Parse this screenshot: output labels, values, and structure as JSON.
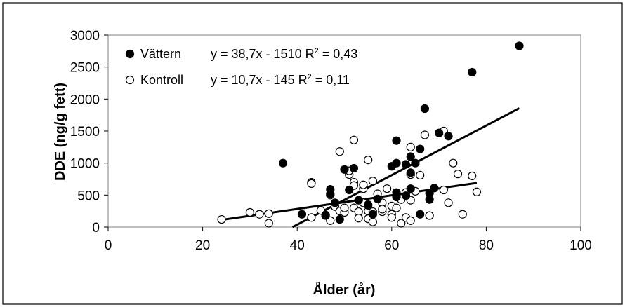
{
  "chart_data": {
    "type": "scatter",
    "xlabel": "Ålder (år)",
    "ylabel": "DDE (ng/g fett)",
    "xlim": [
      0,
      100
    ],
    "ylim": [
      0,
      3000
    ],
    "x_ticks": [
      "0",
      "20",
      "40",
      "60",
      "80",
      "100"
    ],
    "y_ticks": [
      "0",
      "500",
      "1000",
      "1500",
      "2000",
      "2500",
      "3000"
    ],
    "x_tick_values": [
      0,
      20,
      40,
      60,
      80,
      100
    ],
    "y_tick_values": [
      0,
      500,
      1000,
      1500,
      2000,
      2500,
      3000
    ],
    "grid": false,
    "legend_position": "top-left",
    "series": [
      {
        "name": "Vättern",
        "marker": "filled-circle",
        "equation": "y = 38,7x - 1510 R",
        "r2_value": " = 0,43",
        "trend": {
          "slope": 38.7,
          "intercept": -1510,
          "x_range": [
            39,
            87
          ]
        },
        "points": [
          [
            37,
            1000
          ],
          [
            41,
            200
          ],
          [
            46,
            180
          ],
          [
            47,
            520
          ],
          [
            47,
            590
          ],
          [
            48,
            380
          ],
          [
            49,
            120
          ],
          [
            50,
            900
          ],
          [
            51,
            580
          ],
          [
            52,
            920
          ],
          [
            53,
            420
          ],
          [
            55,
            340
          ],
          [
            56,
            200
          ],
          [
            57,
            440
          ],
          [
            60,
            950
          ],
          [
            61,
            1000
          ],
          [
            61,
            1350
          ],
          [
            61,
            540
          ],
          [
            61,
            470
          ],
          [
            63,
            980
          ],
          [
            63,
            490
          ],
          [
            64,
            1100
          ],
          [
            64,
            850
          ],
          [
            64,
            600
          ],
          [
            65,
            1000
          ],
          [
            66,
            1220
          ],
          [
            66,
            200
          ],
          [
            67,
            1850
          ],
          [
            68,
            430
          ],
          [
            68,
            530
          ],
          [
            69,
            610
          ],
          [
            70,
            1470
          ],
          [
            72,
            1420
          ],
          [
            77,
            2420
          ],
          [
            87,
            2830
          ]
        ]
      },
      {
        "name": "Kontroll",
        "marker": "open-circle",
        "equation": "y = 10,7x - 145 R",
        "r2_value": " = 0,11",
        "trend": {
          "slope": 10.7,
          "intercept": -145,
          "x_range": [
            24,
            78
          ]
        },
        "points": [
          [
            24,
            120
          ],
          [
            30,
            230
          ],
          [
            32,
            200
          ],
          [
            34,
            210
          ],
          [
            34,
            60
          ],
          [
            43,
            700
          ],
          [
            43,
            680
          ],
          [
            43,
            150
          ],
          [
            45,
            260
          ],
          [
            46,
            190
          ],
          [
            47,
            100
          ],
          [
            47,
            500
          ],
          [
            48,
            320
          ],
          [
            49,
            1180
          ],
          [
            49,
            250
          ],
          [
            50,
            230
          ],
          [
            50,
            300
          ],
          [
            51,
            820
          ],
          [
            51,
            880
          ],
          [
            52,
            1360
          ],
          [
            52,
            700
          ],
          [
            52,
            650
          ],
          [
            52,
            300
          ],
          [
            53,
            240
          ],
          [
            53,
            140
          ],
          [
            54,
            380
          ],
          [
            54,
            600
          ],
          [
            54,
            660
          ],
          [
            55,
            1050
          ],
          [
            55,
            350
          ],
          [
            55,
            250
          ],
          [
            55,
            130
          ],
          [
            56,
            720
          ],
          [
            56,
            240
          ],
          [
            56,
            80
          ],
          [
            57,
            520
          ],
          [
            58,
            380
          ],
          [
            58,
            240
          ],
          [
            58,
            280
          ],
          [
            59,
            600
          ],
          [
            60,
            330
          ],
          [
            60,
            200
          ],
          [
            60,
            150
          ],
          [
            61,
            300
          ],
          [
            62,
            430
          ],
          [
            62,
            60
          ],
          [
            63,
            150
          ],
          [
            63,
            540
          ],
          [
            64,
            1250
          ],
          [
            64,
            820
          ],
          [
            64,
            420
          ],
          [
            64,
            100
          ],
          [
            65,
            560
          ],
          [
            66,
            810
          ],
          [
            67,
            1440
          ],
          [
            68,
            180
          ],
          [
            71,
            1500
          ],
          [
            71,
            580
          ],
          [
            72,
            380
          ],
          [
            73,
            1000
          ],
          [
            74,
            830
          ],
          [
            75,
            200
          ],
          [
            77,
            800
          ],
          [
            78,
            550
          ]
        ]
      }
    ]
  }
}
